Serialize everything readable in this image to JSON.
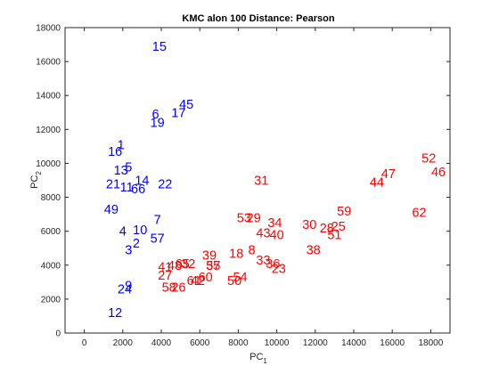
{
  "chart_data": {
    "type": "scatter",
    "title": "KMC alon 100 Distance: Pearson",
    "xlabel": "PC",
    "xlabel_sub": "1",
    "ylabel": "PC",
    "ylabel_sub": "2",
    "xlim": [
      -1000,
      19000
    ],
    "ylim": [
      0,
      18000
    ],
    "xticks": [
      0,
      2000,
      4000,
      6000,
      8000,
      10000,
      12000,
      14000,
      16000,
      18000
    ],
    "yticks": [
      0,
      2000,
      4000,
      6000,
      8000,
      10000,
      12000,
      14000,
      16000,
      18000
    ],
    "colors": {
      "cluster_1": "#0000ff",
      "cluster_2": "#ff0000",
      "axis": "#262626"
    },
    "series": [
      {
        "color": "#0000ff",
        "points": [
          {
            "label": "15",
            "x": 3900,
            "y": 16900
          },
          {
            "label": "45",
            "x": 5300,
            "y": 13500
          },
          {
            "label": "17",
            "x": 4900,
            "y": 13000
          },
          {
            "label": "6",
            "x": 3700,
            "y": 12900
          },
          {
            "label": "19",
            "x": 3800,
            "y": 12400
          },
          {
            "label": "1",
            "x": 1900,
            "y": 11100
          },
          {
            "label": "16",
            "x": 1600,
            "y": 10700
          },
          {
            "label": "5",
            "x": 2300,
            "y": 9800
          },
          {
            "label": "13",
            "x": 1900,
            "y": 9600
          },
          {
            "label": "14",
            "x": 3000,
            "y": 9000
          },
          {
            "label": "21",
            "x": 1500,
            "y": 8800
          },
          {
            "label": "11",
            "x": 2200,
            "y": 8600
          },
          {
            "label": "66",
            "x": 2800,
            "y": 8500
          },
          {
            "label": "22",
            "x": 4200,
            "y": 8800
          },
          {
            "label": "49",
            "x": 1400,
            "y": 7300
          },
          {
            "label": "7",
            "x": 3800,
            "y": 6700
          },
          {
            "label": "10",
            "x": 2900,
            "y": 6100
          },
          {
            "label": "4",
            "x": 2000,
            "y": 6000
          },
          {
            "label": "57",
            "x": 3800,
            "y": 5600
          },
          {
            "label": "2",
            "x": 2700,
            "y": 5300
          },
          {
            "label": "3",
            "x": 2300,
            "y": 4900
          },
          {
            "label": "9",
            "x": 2300,
            "y": 2800
          },
          {
            "label": "24",
            "x": 2100,
            "y": 2600
          },
          {
            "label": "12",
            "x": 1600,
            "y": 1200
          }
        ]
      },
      {
        "color": "#ff0000",
        "points": [
          {
            "label": "52",
            "x": 17900,
            "y": 10300
          },
          {
            "label": "47",
            "x": 15800,
            "y": 9400
          },
          {
            "label": "46",
            "x": 18400,
            "y": 9500
          },
          {
            "label": "44",
            "x": 15200,
            "y": 8900
          },
          {
            "label": "31",
            "x": 9200,
            "y": 9000
          },
          {
            "label": "62",
            "x": 17400,
            "y": 7100
          },
          {
            "label": "59",
            "x": 13500,
            "y": 7200
          },
          {
            "label": "53",
            "x": 8300,
            "y": 6800
          },
          {
            "label": "29",
            "x": 8800,
            "y": 6800
          },
          {
            "label": "34",
            "x": 9900,
            "y": 6500
          },
          {
            "label": "30",
            "x": 11700,
            "y": 6400
          },
          {
            "label": "25",
            "x": 13200,
            "y": 6300
          },
          {
            "label": "28",
            "x": 12600,
            "y": 6200
          },
          {
            "label": "43",
            "x": 9300,
            "y": 5900
          },
          {
            "label": "40",
            "x": 10000,
            "y": 5800
          },
          {
            "label": "51",
            "x": 13000,
            "y": 5800
          },
          {
            "label": "8",
            "x": 8700,
            "y": 4900
          },
          {
            "label": "18",
            "x": 7900,
            "y": 4700
          },
          {
            "label": "38",
            "x": 11900,
            "y": 4900
          },
          {
            "label": "39",
            "x": 6500,
            "y": 4600
          },
          {
            "label": "33",
            "x": 9300,
            "y": 4300
          },
          {
            "label": "36",
            "x": 9800,
            "y": 4100
          },
          {
            "label": "23",
            "x": 10100,
            "y": 3800
          },
          {
            "label": "41",
            "x": 4200,
            "y": 3900
          },
          {
            "label": "48",
            "x": 4700,
            "y": 4000
          },
          {
            "label": "65",
            "x": 5100,
            "y": 4100
          },
          {
            "label": "32",
            "x": 5400,
            "y": 4100
          },
          {
            "label": "37",
            "x": 6700,
            "y": 4000
          },
          {
            "label": "55",
            "x": 6700,
            "y": 4000
          },
          {
            "label": "27",
            "x": 4200,
            "y": 3400
          },
          {
            "label": "60",
            "x": 6300,
            "y": 3300
          },
          {
            "label": "42",
            "x": 5900,
            "y": 3100
          },
          {
            "label": "61",
            "x": 5700,
            "y": 3100
          },
          {
            "label": "54",
            "x": 8100,
            "y": 3300
          },
          {
            "label": "50",
            "x": 7800,
            "y": 3100
          },
          {
            "label": "58",
            "x": 4400,
            "y": 2700
          },
          {
            "label": "26",
            "x": 4900,
            "y": 2700
          }
        ]
      }
    ]
  }
}
